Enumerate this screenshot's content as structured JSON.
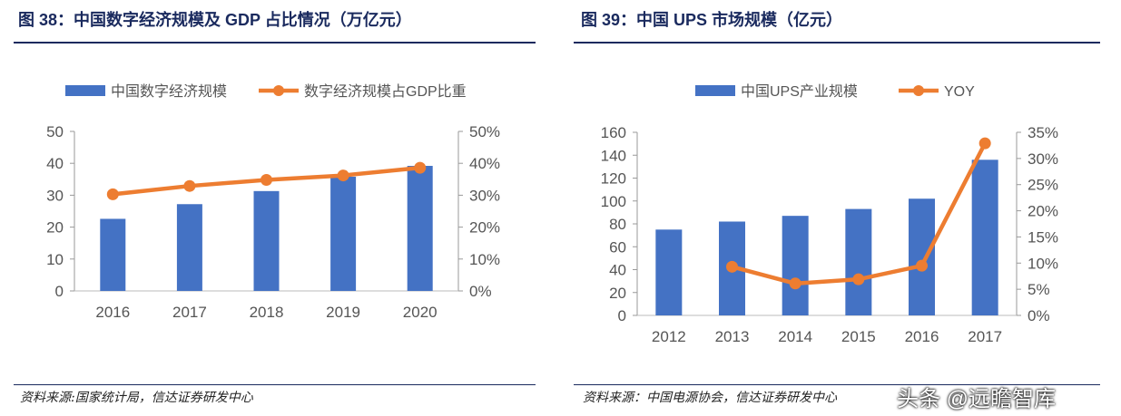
{
  "charts": [
    {
      "title": "图 38：中国数字经济规模及 GDP 占比情况（万亿元）",
      "source": "资料来源:国家统计局，信达证券研发中心"
    },
    {
      "title": "图 39：中国 UPS 市场规模（亿元）",
      "source": "资料来源：中国电源协会，信达证券研发中心"
    }
  ],
  "watermark": "头条 @远瞻智库",
  "colors": {
    "bar": "#4472C4",
    "line": "#ED7D31"
  },
  "chart_data": [
    {
      "type": "bar+line",
      "categories": [
        "2016",
        "2017",
        "2018",
        "2019",
        "2020"
      ],
      "series": [
        {
          "name": "中国数字经济规模",
          "type": "bar",
          "axis": "left",
          "values": [
            22.6,
            27.2,
            31.3,
            35.8,
            39.2
          ]
        },
        {
          "name": "数字经济规模占GDP比重",
          "type": "line",
          "axis": "right",
          "values": [
            30.3,
            32.9,
            34.8,
            36.2,
            38.6
          ]
        }
      ],
      "ylim": [
        0,
        50
      ],
      "yticks": [
        "0",
        "10",
        "20",
        "30",
        "40",
        "50"
      ],
      "y2lim": [
        0,
        50
      ],
      "y2ticks": [
        "0%",
        "10%",
        "20%",
        "30%",
        "40%",
        "50%"
      ],
      "legend": "top"
    },
    {
      "type": "bar+line",
      "categories": [
        "2012",
        "2013",
        "2014",
        "2015",
        "2016",
        "2017"
      ],
      "series": [
        {
          "name": "中国UPS产业规模",
          "type": "bar",
          "axis": "left",
          "values": [
            75,
            82,
            87,
            93,
            102,
            136
          ]
        },
        {
          "name": "YOY",
          "type": "line",
          "axis": "right",
          "values": [
            null,
            9.3,
            6.1,
            6.9,
            9.5,
            32.9
          ]
        }
      ],
      "ylim": [
        0,
        160
      ],
      "yticks": [
        "0",
        "20",
        "40",
        "60",
        "80",
        "100",
        "120",
        "140",
        "160"
      ],
      "y2lim": [
        0,
        35
      ],
      "y2ticks": [
        "0%",
        "5%",
        "10%",
        "15%",
        "20%",
        "25%",
        "30%",
        "35%"
      ],
      "legend": "top"
    }
  ]
}
